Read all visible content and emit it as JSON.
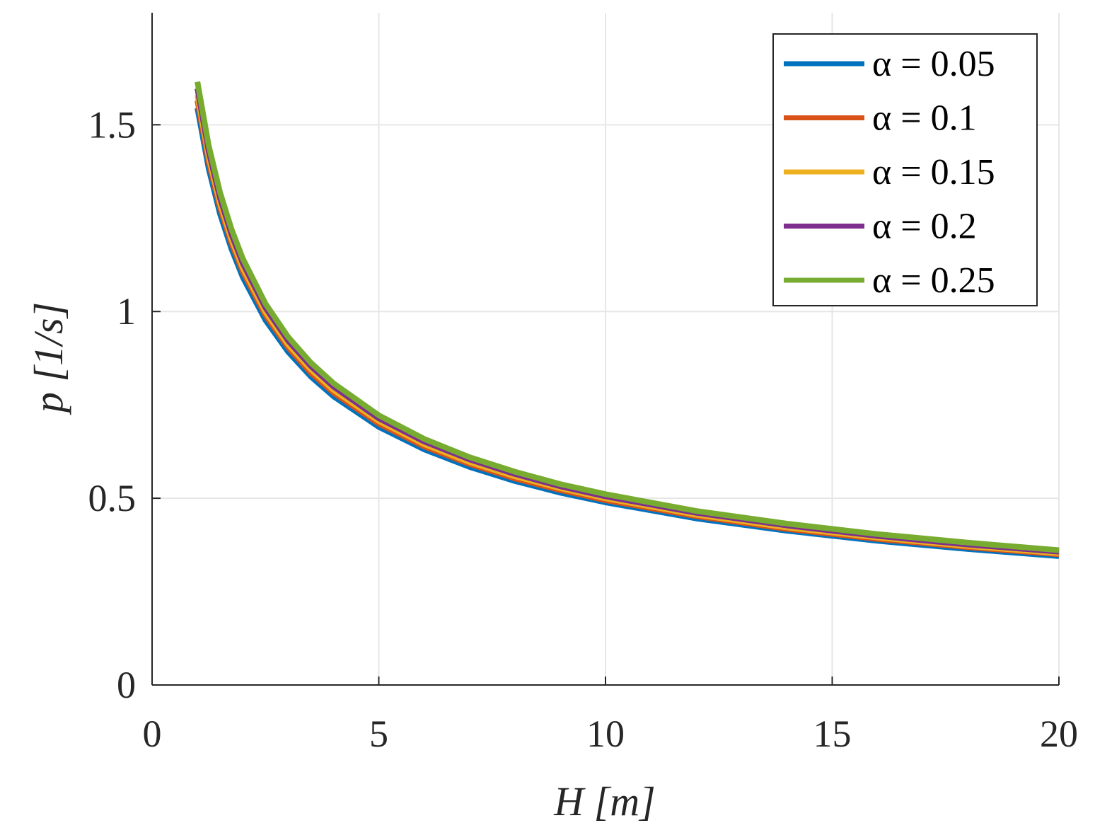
{
  "chart_data": {
    "type": "line",
    "title": "",
    "xlabel": "H [m]",
    "ylabel": "p [1/s]",
    "xlim": [
      0,
      20
    ],
    "ylim": [
      0,
      1.8
    ],
    "xticks": [
      0,
      5,
      10,
      15,
      20
    ],
    "xtick_labels": [
      "0",
      "5",
      "10",
      "15",
      "20"
    ],
    "yticks": [
      0,
      0.5,
      1,
      1.5
    ],
    "ytick_labels": [
      "0",
      "0.5",
      "1",
      "1.5"
    ],
    "grid": true,
    "legend_position": "top-right",
    "x": [
      1,
      1.25,
      1.5,
      1.75,
      2,
      2.5,
      3,
      3.5,
      4,
      5,
      6,
      7,
      8,
      9,
      10,
      12,
      14,
      16,
      18,
      20
    ],
    "series": [
      {
        "name": "α = 0.05",
        "color": "#0072BD",
        "values": [
          1.545,
          1.382,
          1.261,
          1.168,
          1.092,
          0.977,
          0.892,
          0.826,
          0.773,
          0.691,
          0.631,
          0.584,
          0.546,
          0.515,
          0.489,
          0.446,
          0.413,
          0.386,
          0.364,
          0.345
        ]
      },
      {
        "name": "α = 0.1",
        "color": "#D95319",
        "values": [
          1.565,
          1.4,
          1.278,
          1.183,
          1.107,
          0.99,
          0.904,
          0.836,
          0.783,
          0.7,
          0.639,
          0.592,
          0.553,
          0.522,
          0.495,
          0.452,
          0.418,
          0.391,
          0.369,
          0.35
        ]
      },
      {
        "name": "α = 0.15",
        "color": "#EDB120",
        "values": [
          1.58,
          1.413,
          1.29,
          1.194,
          1.117,
          0.999,
          0.912,
          0.845,
          0.79,
          0.707,
          0.645,
          0.597,
          0.559,
          0.527,
          0.5,
          0.456,
          0.422,
          0.395,
          0.372,
          0.353
        ]
      },
      {
        "name": "α = 0.2",
        "color": "#7E2F8E",
        "values": [
          1.597,
          1.428,
          1.304,
          1.207,
          1.129,
          1.01,
          0.922,
          0.854,
          0.799,
          0.714,
          0.652,
          0.604,
          0.565,
          0.532,
          0.505,
          0.461,
          0.427,
          0.399,
          0.376,
          0.357
        ]
      },
      {
        "name": "α = 0.25",
        "color": "#77AC30",
        "values": [
          1.615,
          1.444,
          1.319,
          1.221,
          1.142,
          1.021,
          0.932,
          0.863,
          0.808,
          0.722,
          0.659,
          0.61,
          0.571,
          0.538,
          0.511,
          0.466,
          0.432,
          0.404,
          0.381,
          0.361
        ]
      }
    ]
  }
}
